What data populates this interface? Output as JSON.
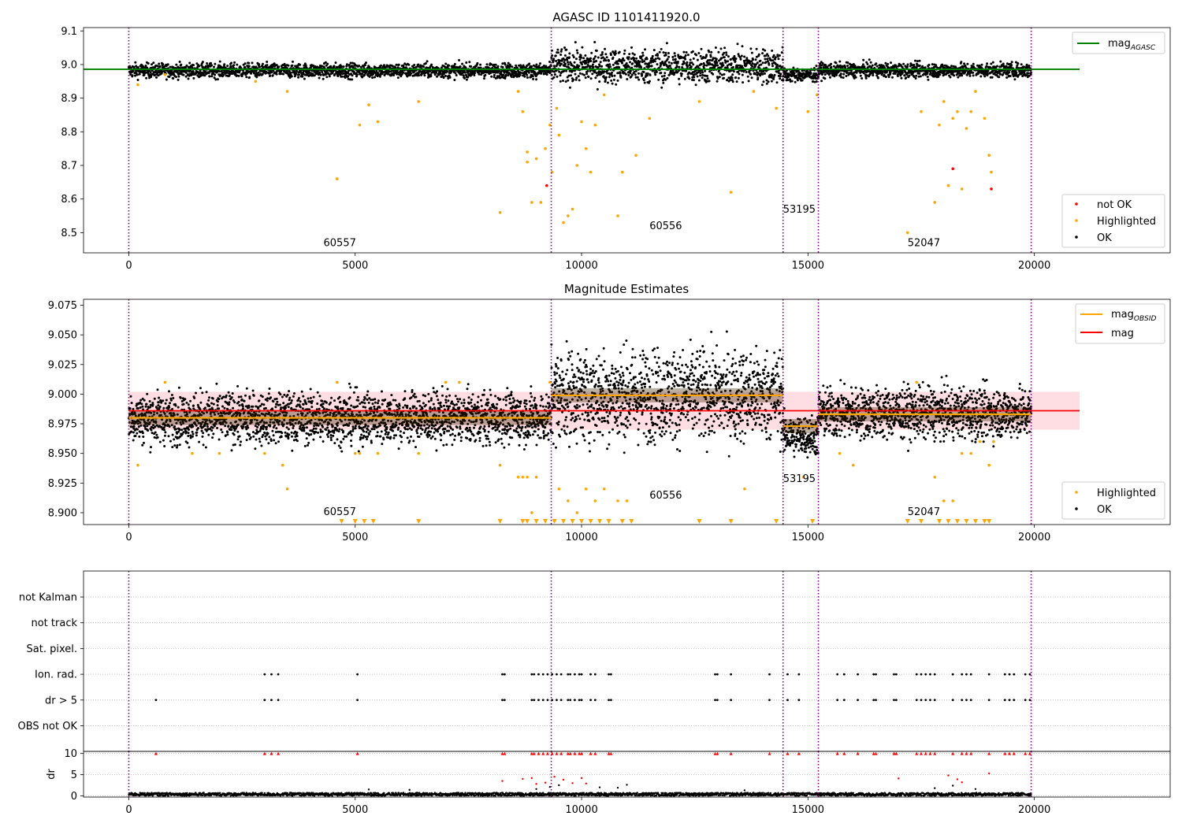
{
  "chart_data": [
    {
      "type": "scatter",
      "title": "AGASC ID 1101411920.0",
      "xlim": [
        -1000,
        23000
      ],
      "ylim": [
        8.44,
        9.11
      ],
      "x_ticks": [
        0,
        5000,
        10000,
        15000,
        20000
      ],
      "y_ticks": [
        8.5,
        8.6,
        8.7,
        8.8,
        8.9,
        9.0,
        9.1
      ],
      "x_tick_labels": [
        "0",
        "5000",
        "10000",
        "15000",
        "20000"
      ],
      "y_tick_labels": [
        "8.5",
        "8.6",
        "8.7",
        "8.8",
        "8.9",
        "9.0",
        "9.1"
      ],
      "vlines_x": [
        0,
        9330,
        14450,
        15230,
        19930
      ],
      "reference_line": {
        "name": "mag_AGASC",
        "value": 8.986,
        "x_range": [
          -1000,
          21000
        ],
        "color": "#008000"
      },
      "segments": [
        {
          "x_range": [
            0,
            9330
          ],
          "center": 8.982,
          "spread": 0.025
        },
        {
          "x_range": [
            9330,
            14450
          ],
          "center": 8.995,
          "spread": 0.06
        },
        {
          "x_range": [
            14450,
            15230
          ],
          "center": 8.97,
          "spread": 0.025
        },
        {
          "x_range": [
            15230,
            19930
          ],
          "center": 8.983,
          "spread": 0.025
        }
      ],
      "highlighted_points": [
        [
          200,
          8.94
        ],
        [
          800,
          8.97
        ],
        [
          2800,
          8.95
        ],
        [
          3500,
          8.92
        ],
        [
          4600,
          8.66
        ],
        [
          5100,
          8.82
        ],
        [
          5300,
          8.88
        ],
        [
          5500,
          8.83
        ],
        [
          6400,
          8.89
        ],
        [
          8200,
          8.56
        ],
        [
          8600,
          8.92
        ],
        [
          8700,
          8.86
        ],
        [
          8800,
          8.74
        ],
        [
          8800,
          8.71
        ],
        [
          8900,
          8.59
        ],
        [
          9000,
          8.72
        ],
        [
          9100,
          8.59
        ],
        [
          9200,
          8.75
        ],
        [
          9300,
          8.82
        ],
        [
          9350,
          8.68
        ],
        [
          9450,
          8.87
        ],
        [
          9500,
          8.79
        ],
        [
          9600,
          8.53
        ],
        [
          9700,
          8.55
        ],
        [
          9800,
          8.57
        ],
        [
          9900,
          8.7
        ],
        [
          10000,
          8.83
        ],
        [
          10100,
          8.75
        ],
        [
          10200,
          8.68
        ],
        [
          10300,
          8.82
        ],
        [
          10500,
          8.91
        ],
        [
          10800,
          8.55
        ],
        [
          10900,
          8.68
        ],
        [
          11200,
          8.73
        ],
        [
          11500,
          8.84
        ],
        [
          12600,
          8.89
        ],
        [
          13300,
          8.62
        ],
        [
          13800,
          8.92
        ],
        [
          14300,
          8.87
        ],
        [
          15000,
          8.86
        ],
        [
          15200,
          8.91
        ],
        [
          17200,
          8.5
        ],
        [
          17500,
          8.86
        ],
        [
          17800,
          8.59
        ],
        [
          17900,
          8.82
        ],
        [
          18000,
          8.89
        ],
        [
          18100,
          8.64
        ],
        [
          18200,
          8.84
        ],
        [
          18300,
          8.86
        ],
        [
          18400,
          8.63
        ],
        [
          18500,
          8.81
        ],
        [
          18600,
          8.86
        ],
        [
          18700,
          8.92
        ],
        [
          18900,
          8.84
        ],
        [
          19000,
          8.73
        ],
        [
          19050,
          8.68
        ]
      ],
      "not_ok_points": [
        [
          9230,
          8.64
        ],
        [
          18200,
          8.69
        ],
        [
          19050,
          8.63
        ]
      ],
      "annotations": [
        {
          "text": "60557",
          "x": 4300,
          "y": 8.46
        },
        {
          "text": "60556",
          "x": 11500,
          "y": 8.51
        },
        {
          "text": "53195",
          "x": 14450,
          "y": 8.56
        },
        {
          "text": "52047",
          "x": 17200,
          "y": 8.46
        }
      ],
      "legend": {
        "placement": "top-right",
        "entries": [
          {
            "base": "mag",
            "sub": "AGASC",
            "color": "#008000"
          }
        ]
      },
      "legend2": {
        "placement": "bottom-right",
        "entries": [
          {
            "label": "not OK",
            "color": "#ff0000"
          },
          {
            "label": "Highlighted",
            "color": "#ffa500"
          },
          {
            "label": "OK",
            "color": "#000000"
          }
        ]
      }
    },
    {
      "type": "scatter",
      "title": "Magnitude Estimates",
      "xlim": [
        -1000,
        23000
      ],
      "ylim": [
        8.89,
        9.08
      ],
      "x_ticks": [
        0,
        5000,
        10000,
        15000,
        20000
      ],
      "y_ticks": [
        8.9,
        8.925,
        8.95,
        8.975,
        9.0,
        9.025,
        9.05,
        9.075
      ],
      "x_tick_labels": [
        "0",
        "5000",
        "10000",
        "15000",
        "20000"
      ],
      "y_tick_labels": [
        "8.900",
        "8.925",
        "8.950",
        "8.975",
        "9.000",
        "9.025",
        "9.050",
        "9.075"
      ],
      "vlines_x": [
        0,
        9330,
        14450,
        15230,
        19930
      ],
      "mean_line": {
        "name": "mag",
        "value": 8.986,
        "x_range": [
          0,
          21000
        ],
        "color": "#ff0000"
      },
      "band": {
        "y_range": [
          8.97,
          9.002
        ],
        "x_range": [
          0,
          21000
        ],
        "color": "#ffb6c1"
      },
      "obsid_lines": [
        {
          "x_range": [
            0,
            9330
          ],
          "value": 8.98
        },
        {
          "x_range": [
            9330,
            14450
          ],
          "value": 8.999
        },
        {
          "x_range": [
            14450,
            15230
          ],
          "value": 8.973
        },
        {
          "x_range": [
            15230,
            19930
          ],
          "value": 8.983
        }
      ],
      "segments": [
        {
          "x_range": [
            0,
            9330
          ],
          "center": 8.98,
          "spread": 0.025
        },
        {
          "x_range": [
            9330,
            14450
          ],
          "center": 8.999,
          "spread": 0.045
        },
        {
          "x_range": [
            14450,
            15230
          ],
          "center": 8.965,
          "spread": 0.02
        },
        {
          "x_range": [
            15230,
            19930
          ],
          "center": 8.984,
          "spread": 0.025
        }
      ],
      "highlighted_points": [
        [
          200,
          8.94
        ],
        [
          800,
          9.01
        ],
        [
          1400,
          8.95
        ],
        [
          2000,
          8.95
        ],
        [
          3000,
          8.95
        ],
        [
          3400,
          8.94
        ],
        [
          3500,
          8.92
        ],
        [
          4600,
          9.01
        ],
        [
          5000,
          8.95
        ],
        [
          5100,
          8.95
        ],
        [
          5500,
          8.95
        ],
        [
          6400,
          8.95
        ],
        [
          7000,
          9.01
        ],
        [
          7300,
          9.01
        ],
        [
          8200,
          8.94
        ],
        [
          8600,
          8.93
        ],
        [
          8700,
          8.93
        ],
        [
          8800,
          8.93
        ],
        [
          8900,
          8.9
        ],
        [
          9000,
          8.93
        ],
        [
          9300,
          9.01
        ],
        [
          9500,
          8.92
        ],
        [
          9700,
          8.91
        ],
        [
          9900,
          8.9
        ],
        [
          10100,
          8.92
        ],
        [
          10300,
          8.91
        ],
        [
          10500,
          8.92
        ],
        [
          10800,
          8.91
        ],
        [
          11000,
          8.91
        ],
        [
          13600,
          8.92
        ],
        [
          14900,
          8.93
        ],
        [
          15700,
          8.95
        ],
        [
          16000,
          8.94
        ],
        [
          17400,
          9.01
        ],
        [
          17800,
          8.93
        ],
        [
          18000,
          8.91
        ],
        [
          18200,
          8.91
        ],
        [
          18400,
          8.95
        ],
        [
          18600,
          8.95
        ],
        [
          18800,
          8.96
        ],
        [
          19000,
          8.94
        ],
        [
          19100,
          8.96
        ]
      ],
      "down_markers_x": [
        4700,
        5000,
        5200,
        5400,
        6400,
        8200,
        8700,
        8800,
        9000,
        9200,
        9400,
        9600,
        9800,
        10000,
        10200,
        10400,
        10600,
        10900,
        11100,
        12600,
        13300,
        14300,
        15100,
        17200,
        17500,
        17900,
        18100,
        18300,
        18500,
        18700,
        18900,
        19000
      ],
      "annotations": [
        {
          "text": "60557",
          "x": 4300,
          "y": 8.898
        },
        {
          "text": "60556",
          "x": 11500,
          "y": 8.912
        },
        {
          "text": "53195",
          "x": 14450,
          "y": 8.926
        },
        {
          "text": "52047",
          "x": 17200,
          "y": 8.898
        }
      ],
      "legend": {
        "placement": "top-right",
        "entries": [
          {
            "base": "mag",
            "sub": "OBSID",
            "color": "#ffa500"
          },
          {
            "base": "mag",
            "sub": "",
            "color": "#ff0000"
          }
        ]
      },
      "legend2": {
        "placement": "bottom-right",
        "entries": [
          {
            "label": "Highlighted",
            "color": "#ffa500"
          },
          {
            "label": "OK",
            "color": "#000000"
          }
        ]
      }
    },
    {
      "type": "scatter",
      "title": "",
      "xlim": [
        -1000,
        23000
      ],
      "y_categories": [
        "not Kalman",
        "not track",
        "Sat. pixel.",
        "Ion. rad.",
        "dr > 5",
        "OBS not OK"
      ],
      "vlines_x": [
        0,
        9330,
        14450,
        15230,
        19930
      ],
      "flag_events": {
        "Ion. rad.": [
          3000,
          3150,
          3300,
          5050,
          8250,
          8300,
          8900,
          8950,
          9050,
          9150,
          9250,
          9350,
          9450,
          9550,
          9700,
          9750,
          9850,
          9950,
          10000,
          10200,
          10300,
          10600,
          10650,
          12950,
          13000,
          13300,
          14150,
          14550,
          14800,
          15650,
          15800,
          16100,
          16450,
          16500,
          16900,
          16950,
          17400,
          17500,
          17600,
          17700,
          17800,
          18200,
          18400,
          18500,
          18600,
          19000,
          19350,
          19450,
          19550,
          19800,
          19900
        ],
        "dr > 5": [
          600,
          3000,
          3150,
          3300,
          5050,
          8250,
          8300,
          8900,
          8950,
          9050,
          9150,
          9250,
          9350,
          9450,
          9550,
          9700,
          9750,
          9850,
          9950,
          10000,
          10200,
          10300,
          10600,
          10650,
          12950,
          13000,
          13300,
          14150,
          14550,
          14800,
          15650,
          15800,
          16100,
          16450,
          16500,
          16900,
          16950,
          17400,
          17500,
          17600,
          17700,
          17800,
          18200,
          18400,
          18500,
          18600,
          19000,
          19350,
          19450,
          19550,
          19800,
          19900
        ]
      }
    },
    {
      "type": "scatter",
      "title": "",
      "xlim": [
        -1000,
        23000
      ],
      "ylim": [
        -0.3,
        10.5
      ],
      "x_ticks": [
        0,
        5000,
        10000,
        15000,
        20000
      ],
      "y_ticks": [
        0,
        5,
        10
      ],
      "x_tick_labels": [
        "0",
        "5000",
        "10000",
        "15000",
        "20000"
      ],
      "y_tick_labels": [
        "0",
        "5",
        "10"
      ],
      "ylabel": "dr",
      "vlines_x": [
        0,
        9330,
        14450,
        15230,
        19930
      ],
      "baseline_range": [
        0,
        1.2
      ],
      "capped_markers_x": [
        600,
        3000,
        3150,
        3300,
        5050,
        8250,
        8300,
        8900,
        8950,
        9050,
        9150,
        9250,
        9350,
        9450,
        9550,
        9700,
        9750,
        9850,
        9950,
        10000,
        10200,
        10300,
        10600,
        10650,
        12950,
        13000,
        13300,
        14150,
        14550,
        14800,
        15650,
        15800,
        16100,
        16450,
        16500,
        16900,
        16950,
        17400,
        17500,
        17600,
        17700,
        17800,
        18200,
        18400,
        18500,
        18600,
        19000,
        19350,
        19450,
        19550,
        19800,
        19900
      ],
      "red_points": [
        [
          8250,
          3.5
        ],
        [
          8700,
          4.0
        ],
        [
          8900,
          4.2
        ],
        [
          9000,
          2.8
        ],
        [
          9200,
          3.1
        ],
        [
          9400,
          4.5
        ],
        [
          9600,
          3.8
        ],
        [
          9800,
          3.0
        ],
        [
          10000,
          4.2
        ],
        [
          10100,
          2.9
        ],
        [
          18100,
          4.8
        ],
        [
          18300,
          3.9
        ],
        [
          18400,
          3.2
        ],
        [
          19000,
          5.3
        ],
        [
          17000,
          4.1
        ]
      ],
      "black_points": [
        [
          5300,
          1.5
        ],
        [
          6200,
          1.4
        ],
        [
          9000,
          1.6
        ],
        [
          9300,
          2.1
        ],
        [
          9500,
          2.5
        ],
        [
          10400,
          2.0
        ],
        [
          10800,
          1.9
        ],
        [
          11000,
          2.6
        ],
        [
          17800,
          1.8
        ],
        [
          18200,
          2.4
        ],
        [
          18700,
          1.6
        ],
        [
          13600,
          1.3
        ]
      ]
    }
  ]
}
